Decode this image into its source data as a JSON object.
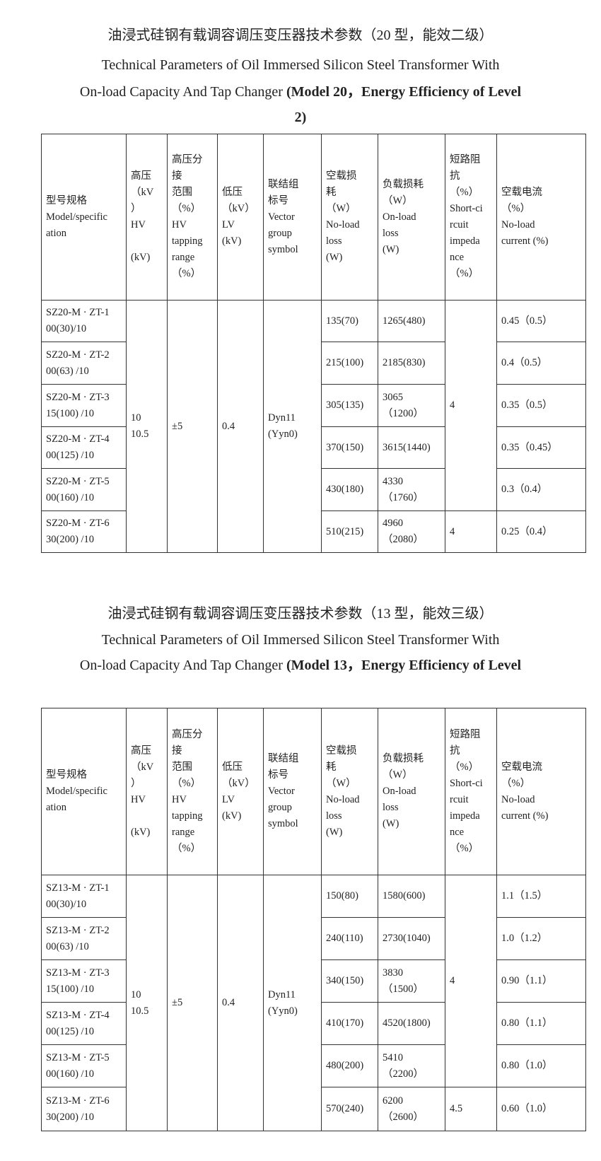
{
  "sections": [
    {
      "title_cn": "油浸式硅钢有载调容调压变压器技术参数（20 型，能效二级）",
      "title_en_1": "Technical Parameters of Oil Immersed Silicon Steel Transformer With",
      "title_en_2_plain": "On-load Capacity And Tap Changer ",
      "title_en_2_bold": "(Model 20，Energy Efficiency of Level",
      "title_en_3_bold": "2)",
      "headers": [
        "型号规格\nModel/specific\nation",
        "高压\n（kV\n）\nHV\n\n(kV)",
        "高压分\n接\n范围\n（%）\nHV\ntapping\n  range\n（%）",
        "低压\n（kV）\nLV\n  (kV)",
        "联结组\n标号\nVector\ngroup\n  symbol",
        "空载损\n耗\n（W）\nNo-load\nloss\n (W)",
        "负载损耗\n（W）\nOn-load\nloss\n  (W)",
        "短路阻\n抗\n（%）\nShort-ci\nrcuit\nimpeda\nnce\n  （%）",
        "空载电流\n（%）\nNo-load\ncurrent (%)"
      ],
      "hv": "10\n10.5",
      "tapping": "±5",
      "lv": "0.4",
      "vector": "Dyn11\n(Yyn0)",
      "impedance_group": "4",
      "impedance_last": "4",
      "rows": [
        {
          "model": "SZ20-M · ZT-1\n00(30)/10",
          "noload": "135(70)",
          "onload": "1265(480)",
          "current": "0.45（0.5）"
        },
        {
          "model": "SZ20-M · ZT-2\n00(63) /10",
          "noload": "215(100)",
          "onload": "2185(830)",
          "current": "0.4（0.5）"
        },
        {
          "model": "SZ20-M · ZT-3\n15(100) /10",
          "noload": "305(135)",
          "onload": "3065\n（1200）",
          "current": "0.35（0.5）"
        },
        {
          "model": "SZ20-M · ZT-4\n00(125) /10",
          "noload": "370(150)",
          "onload": "3615(1440)",
          "current": "0.35（0.45）"
        },
        {
          "model": "SZ20-M · ZT-5\n00(160) /10",
          "noload": "430(180)",
          "onload": "4330\n（1760）",
          "current": "0.3（0.4）"
        },
        {
          "model": "SZ20-M · ZT-6\n30(200) /10",
          "noload": "510(215)",
          "onload": "4960\n（2080）",
          "current": "0.25（0.4）"
        }
      ]
    },
    {
      "title_cn": "油浸式硅钢有载调容调压变压器技术参数（13 型，能效三级）",
      "title_en_1": "Technical Parameters of Oil Immersed Silicon Steel Transformer With",
      "title_en_2_plain": "On-load Capacity And Tap Changer ",
      "title_en_2_bold": "(Model 13，Energy Efficiency of Level",
      "title_en_3_bold": "",
      "headers": [
        "型号规格\nModel/specific\nation",
        "高压\n（kV\n）\nHV\n\n(kV)",
        "高压分\n接\n范围\n（%）\nHV\ntapping\n  range\n（%）",
        "低压\n（kV）\nLV\n  (kV)",
        "联结组\n标号\nVector\ngroup\n  symbol",
        "空载损\n耗\n（W）\nNo-load\nloss\n (W)",
        "负载损耗\n（W）\nOn-load\nloss\n  (W)",
        "短路阻\n抗\n（%）\nShort-ci\nrcuit\nimpeda\nnce\n  （%）",
        "空载电流\n（%）\nNo-load\ncurrent (%)"
      ],
      "hv": "10\n10.5",
      "tapping": "±5",
      "lv": "0.4",
      "vector": "Dyn11\n(Yyn0)",
      "impedance_group": "4",
      "impedance_last": "4.5",
      "rows": [
        {
          "model": "SZ13-M · ZT-1\n00(30)/10",
          "noload": "150(80)",
          "onload": "1580(600)",
          "current": "1.1（1.5）"
        },
        {
          "model": "SZ13-M · ZT-2\n00(63) /10",
          "noload": "240(110)",
          "onload": "2730(1040)",
          "current": "1.0（1.2）"
        },
        {
          "model": "SZ13-M · ZT-3\n15(100) /10",
          "noload": "340(150)",
          "onload": "3830\n（1500）",
          "current": "0.90（1.1）"
        },
        {
          "model": "SZ13-M · ZT-4\n00(125) /10",
          "noload": "410(170)",
          "onload": "4520(1800)",
          "current": "0.80（1.1）"
        },
        {
          "model": "SZ13-M · ZT-5\n00(160) /10",
          "noload": "480(200)",
          "onload": "5410\n（2200）",
          "current": "0.80（1.0）"
        },
        {
          "model": "SZ13-M · ZT-6\n30(200) /10",
          "noload": "570(240)",
          "onload": "6200\n（2600）",
          "current": "0.60（1.0）"
        }
      ]
    }
  ]
}
